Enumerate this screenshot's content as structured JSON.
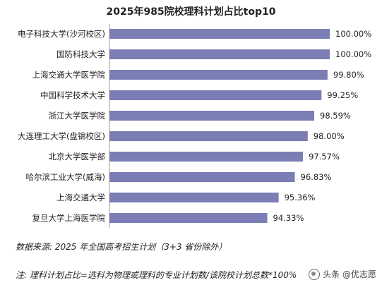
{
  "chart_data": {
    "type": "bar",
    "orientation": "horizontal",
    "title": "2025年985院校理科计划占比top10",
    "categories": [
      "电子科技大学(沙河校区)",
      "国防科技大学",
      "上海交通大学医学院",
      "中国科学技术大学",
      "浙江大学医学院",
      "大连理工大学(盘锦校区)",
      "北京大学医学部",
      "哈尔滨工业大学(威海)",
      "上海交通大学",
      "复旦大学上海医学院"
    ],
    "values": [
      100.0,
      100.0,
      99.8,
      99.25,
      98.59,
      98.0,
      97.57,
      96.83,
      95.36,
      94.33
    ],
    "value_labels": [
      "100.00%",
      "100.00%",
      "99.80%",
      "99.25%",
      "98.59%",
      "98.00%",
      "97.57%",
      "96.83%",
      "95.36%",
      "94.33%"
    ],
    "xlim": [
      80,
      100
    ],
    "grid": false,
    "bar_color": "#7B7DB5"
  },
  "footer": {
    "source": "数据来源: 2025 年全国高考招生计划（3+3 省份除外）",
    "note": "注: 理科计划占比=选科为物理或理科的专业计划数/该院校计划总数*100%",
    "watermark": "头条 @优志愿"
  }
}
